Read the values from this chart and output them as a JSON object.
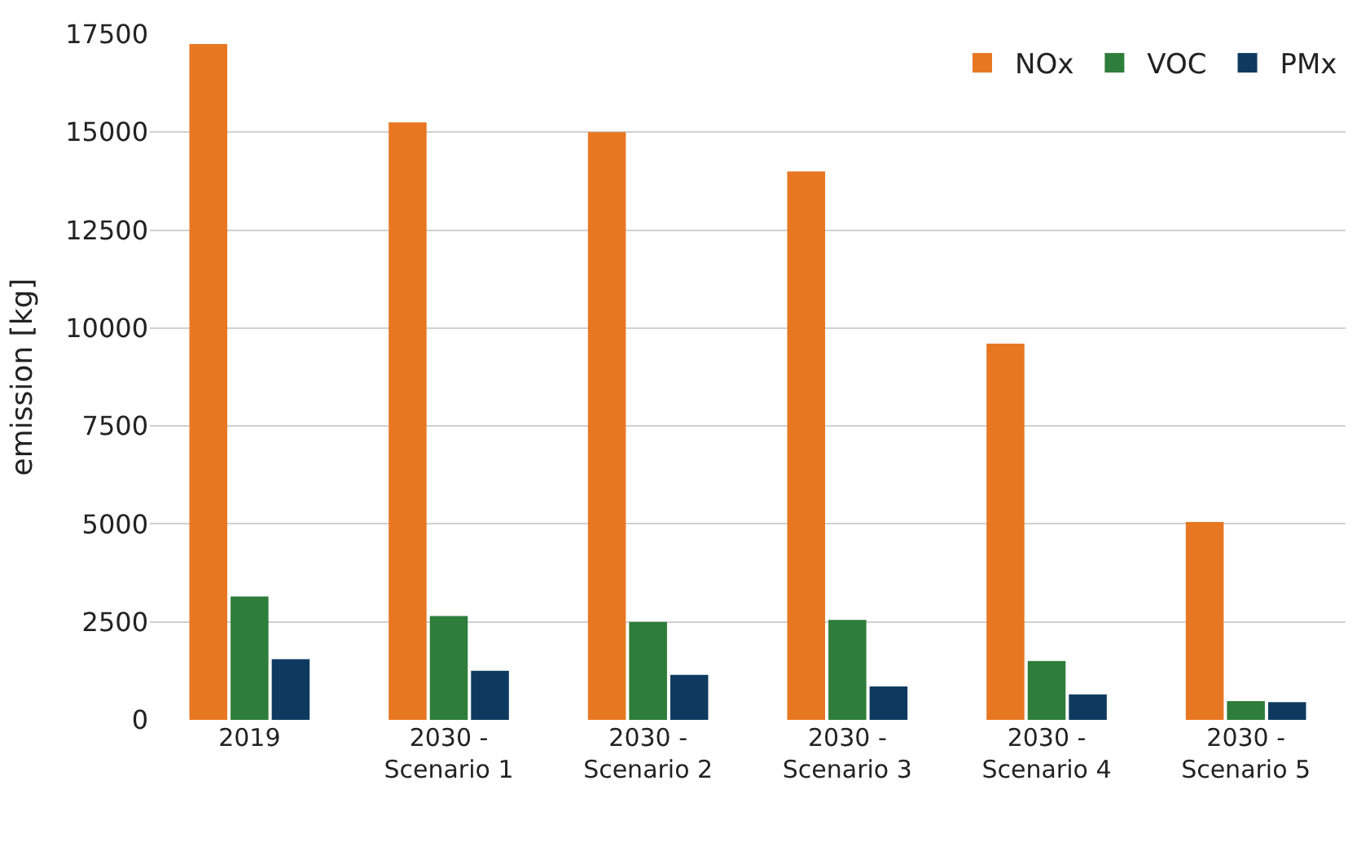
{
  "chart_data": {
    "type": "bar",
    "ylabel": "emission [kg]",
    "categories": [
      "2019",
      "2030 -\nScenario 1",
      "2030 -\nScenario 2",
      "2030 -\nScenario 3",
      "2030 -\nScenario 4",
      "2030 -\nScenario 5"
    ],
    "series": [
      {
        "name": "NOx",
        "color": "#e87722",
        "values": [
          17250,
          15250,
          15000,
          14000,
          9600,
          5050
        ]
      },
      {
        "name": "VOC",
        "color": "#2e7d3a",
        "values": [
          3150,
          2650,
          2500,
          2550,
          1500,
          480
        ]
      },
      {
        "name": "PMx",
        "color": "#0e3a5f",
        "values": [
          1550,
          1250,
          1150,
          850,
          650,
          450
        ]
      }
    ],
    "ylim": [
      0,
      17500
    ],
    "yticks": [
      0,
      2500,
      5000,
      7500,
      10000,
      12500,
      15000,
      17500
    ],
    "grid": "y",
    "legend": "top right"
  }
}
